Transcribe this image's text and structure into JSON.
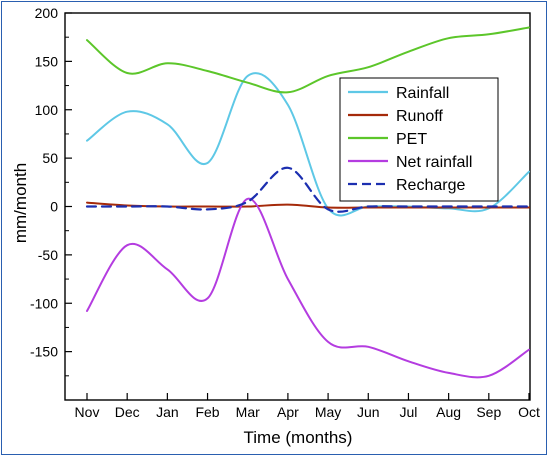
{
  "chart_data": {
    "type": "line",
    "title": "",
    "xlabel": "Time (months)",
    "ylabel": "mm/month",
    "categories": [
      "Nov",
      "Dec",
      "Jan",
      "Feb",
      "Mar",
      "Apr",
      "May",
      "Jun",
      "Jul",
      "Aug",
      "Sep",
      "Oct"
    ],
    "ylim": [
      -200,
      200
    ],
    "yticks": [
      "200",
      "150",
      "100",
      "50",
      "0",
      "-50",
      "-100",
      "-150"
    ],
    "legend_position": "right",
    "series": [
      {
        "name": "Rainfall",
        "color": "#5ec8e6",
        "dash": false,
        "values": [
          68,
          98,
          85,
          45,
          135,
          105,
          -2,
          0,
          0,
          -2,
          -2,
          36
        ]
      },
      {
        "name": "Runoff",
        "color": "#a52a0a",
        "dash": false,
        "values": [
          4,
          1,
          0,
          0,
          0,
          2,
          -1,
          -1,
          -1,
          -1,
          -1,
          -1
        ]
      },
      {
        "name": "PET",
        "color": "#5cc62a",
        "dash": false,
        "values": [
          172,
          138,
          148,
          140,
          128,
          118,
          135,
          144,
          160,
          174,
          178,
          185
        ]
      },
      {
        "name": "Net rainfall",
        "color": "#b43ce0",
        "dash": false,
        "values": [
          -108,
          -40,
          -65,
          -95,
          8,
          -75,
          -140,
          -145,
          -160,
          -172,
          -175,
          -148
        ]
      },
      {
        "name": "Recharge",
        "color": "#1c2fb0",
        "dash": true,
        "values": [
          0,
          0,
          0,
          -3,
          5,
          40,
          -3,
          0,
          0,
          0,
          0,
          0
        ]
      }
    ]
  }
}
